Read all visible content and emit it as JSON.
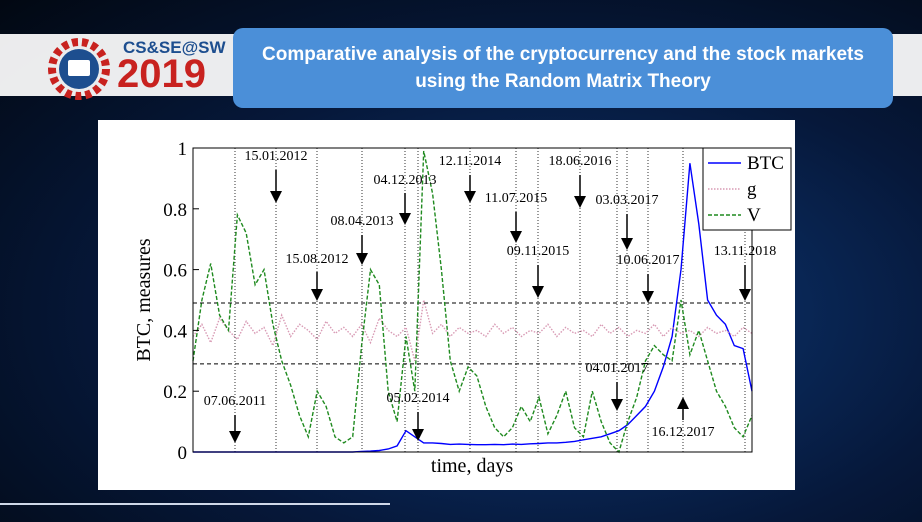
{
  "header": {
    "logo_top": "CS&SE@SW",
    "logo_year": "2019",
    "title": "Comparative analysis of the cryptocurrency and the stock markets using the Random Matrix Theory"
  },
  "chart_data": {
    "type": "line",
    "xlabel": "time, days",
    "ylabel": "BTC, measures",
    "ylim": [
      0,
      1
    ],
    "yticks": [
      0,
      0.2,
      0.4,
      0.6,
      0.8,
      1
    ],
    "legend": "upper right",
    "reference_lines": [
      0.49,
      0.29
    ],
    "annotations": [
      "07.06.2011",
      "15.01.2012",
      "15.08.2012",
      "08.04.2013",
      "04.12.2013",
      "05.02.2014",
      "12.11.2014",
      "11.07.2015",
      "09.11.2015",
      "18.06.2016",
      "04.01.2017",
      "03.03.2017",
      "10.06.2017",
      "16.12.2017",
      "13.11.2018"
    ],
    "categories": [
      null,
      null,
      null,
      null,
      null,
      null,
      null,
      null,
      null,
      null,
      null,
      null,
      null,
      null,
      null,
      null,
      null,
      null,
      null,
      null,
      null,
      null,
      null,
      null,
      null,
      null,
      null,
      null,
      null,
      null,
      null,
      null,
      null,
      null,
      null,
      null,
      null,
      null,
      null,
      null,
      null,
      null,
      null,
      null,
      null,
      null,
      null,
      null,
      null,
      null,
      null,
      null,
      null,
      null,
      null,
      null,
      null,
      null,
      null,
      null,
      null,
      null,
      null,
      null
    ],
    "series": [
      {
        "name": "BTC",
        "color": "#0000ff",
        "style": "solid",
        "values": [
          0,
          0,
          0,
          0,
          0,
          0,
          0,
          0,
          0,
          0,
          0,
          0,
          0,
          0,
          0,
          0,
          0,
          0,
          0,
          0.002,
          0.003,
          0.005,
          0.01,
          0.02,
          0.07,
          0.05,
          0.03,
          0.03,
          0.028,
          0.025,
          0.026,
          0.025,
          0.024,
          0.024,
          0.025,
          0.024,
          0.026,
          0.025,
          0.027,
          0.028,
          0.03,
          0.03,
          0.032,
          0.035,
          0.04,
          0.045,
          0.05,
          0.06,
          0.07,
          0.09,
          0.12,
          0.15,
          0.2,
          0.28,
          0.38,
          0.6,
          0.95,
          0.75,
          0.5,
          0.45,
          0.42,
          0.35,
          0.34,
          0.2
        ]
      },
      {
        "name": "g",
        "color": "#d89ab4",
        "style": "dotted",
        "values": [
          0.38,
          0.42,
          0.36,
          0.44,
          0.4,
          0.37,
          0.43,
          0.39,
          0.41,
          0.35,
          0.45,
          0.38,
          0.42,
          0.4,
          0.37,
          0.43,
          0.39,
          0.41,
          0.38,
          0.42,
          0.36,
          0.44,
          0.4,
          0.38,
          0.41,
          0.3,
          0.5,
          0.39,
          0.42,
          0.38,
          0.41,
          0.39,
          0.4,
          0.38,
          0.42,
          0.39,
          0.41,
          0.38,
          0.4,
          0.39,
          0.42,
          0.38,
          0.41,
          0.39,
          0.4,
          0.38,
          0.42,
          0.39,
          0.41,
          0.38,
          0.4,
          0.39,
          0.42,
          0.38,
          0.41,
          0.39,
          0.4,
          0.38,
          0.41,
          0.39,
          0.4,
          0.38,
          0.41,
          0.39
        ]
      },
      {
        "name": "V",
        "color": "#1f8a1f",
        "style": "dashed",
        "values": [
          0.3,
          0.5,
          0.62,
          0.45,
          0.4,
          0.78,
          0.72,
          0.55,
          0.6,
          0.42,
          0.3,
          0.22,
          0.12,
          0.05,
          0.2,
          0.15,
          0.05,
          0.03,
          0.05,
          0.35,
          0.6,
          0.55,
          0.2,
          0.1,
          0.38,
          0.2,
          0.99,
          0.85,
          0.6,
          0.3,
          0.2,
          0.28,
          0.25,
          0.15,
          0.08,
          0.05,
          0.08,
          0.15,
          0.1,
          0.18,
          0.06,
          0.12,
          0.2,
          0.08,
          0.05,
          0.2,
          0.1,
          0.03,
          0.0,
          0.1,
          0.18,
          0.3,
          0.35,
          0.32,
          0.3,
          0.5,
          0.32,
          0.4,
          0.3,
          0.2,
          0.15,
          0.08,
          0.05,
          0.12
        ]
      }
    ]
  }
}
